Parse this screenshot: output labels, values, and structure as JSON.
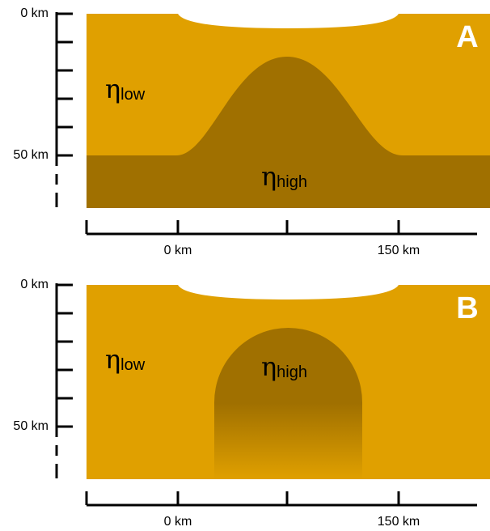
{
  "panels": [
    {
      "label": "A",
      "y_axis_labels": [
        "0 km",
        "50 km"
      ],
      "x_axis_labels": [
        "0 km",
        "150 km"
      ],
      "regions": [
        {
          "symbol": "η",
          "subscript": "low"
        },
        {
          "symbol": "η",
          "subscript": "high"
        }
      ]
    },
    {
      "label": "B",
      "y_axis_labels": [
        "0 km",
        "50 km"
      ],
      "x_axis_labels": [
        "0 km",
        "150 km"
      ],
      "regions": [
        {
          "symbol": "η",
          "subscript": "low"
        },
        {
          "symbol": "η",
          "subscript": "high"
        }
      ]
    }
  ]
}
